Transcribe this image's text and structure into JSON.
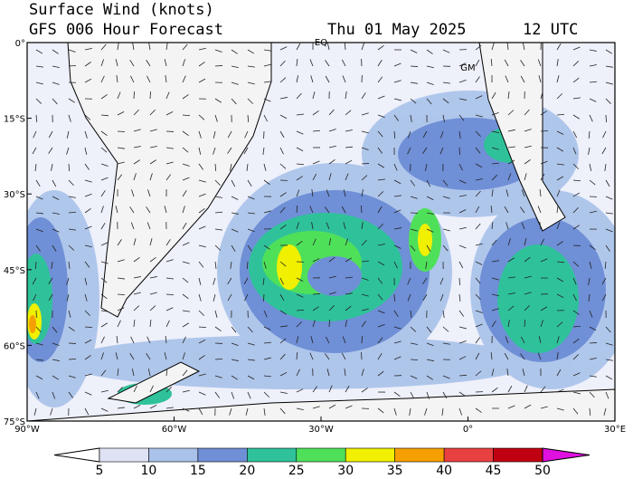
{
  "header": {
    "title": "Surface Wind (knots)",
    "subtitle": "GFS 006 Hour Forecast",
    "date": "Thu 01 May 2025",
    "time": "12 UTC"
  },
  "map": {
    "lat_ticks": [
      {
        "value": 0,
        "label": "0°"
      },
      {
        "value": -15,
        "label": "15°S"
      },
      {
        "value": -30,
        "label": "30°S"
      },
      {
        "value": -45,
        "label": "45°S"
      },
      {
        "value": -60,
        "label": "60°S"
      },
      {
        "value": -75,
        "label": "75°S"
      }
    ],
    "lon_ticks": [
      {
        "value": -90,
        "label": "90°W"
      },
      {
        "value": -60,
        "label": "60°W"
      },
      {
        "value": -30,
        "label": "30°W"
      },
      {
        "value": 0,
        "label": "0°"
      },
      {
        "value": 30,
        "label": "30°E"
      }
    ],
    "latlim": [
      0,
      -75
    ],
    "lonlim": [
      -90,
      30
    ],
    "markers": [
      {
        "label": "EQ",
        "lon": -30,
        "lat": 0
      },
      {
        "label": "GM",
        "lon": 0,
        "lat": -5
      }
    ]
  },
  "colorbar": {
    "ticks": [
      5,
      10,
      15,
      20,
      25,
      30,
      35,
      40,
      45,
      50
    ],
    "colors": [
      "#ffffff",
      "#dfe2f5",
      "#a9c2ea",
      "#6f8fd6",
      "#2fc29a",
      "#4fe05a",
      "#f0f000",
      "#f5a000",
      "#e84040",
      "#c00010",
      "#e010e0"
    ]
  }
}
